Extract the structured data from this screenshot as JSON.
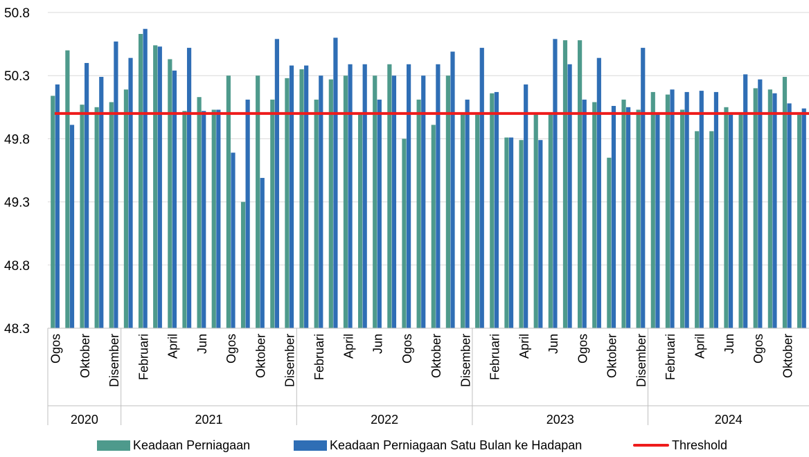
{
  "chart_data": {
    "type": "bar",
    "title": "",
    "xlabel": "",
    "ylabel": "",
    "ylim": [
      48.3,
      50.8
    ],
    "yticks": [
      "48.3",
      "48.8",
      "49.3",
      "49.8",
      "50.3",
      "50.8"
    ],
    "grid": "horizontal",
    "legend_position": "bottom",
    "years": [
      {
        "label": "2020",
        "start": 0,
        "count": 5
      },
      {
        "label": "2021",
        "start": 5,
        "count": 12
      },
      {
        "label": "2022",
        "start": 17,
        "count": 12
      },
      {
        "label": "2023",
        "start": 29,
        "count": 12
      },
      {
        "label": "2024",
        "start": 41,
        "count": 11
      }
    ],
    "categories": [
      "Ogos",
      "",
      "Oktober",
      "",
      "Disember",
      "",
      "Februari",
      "",
      "April",
      "",
      "Jun",
      "",
      "Ogos",
      "",
      "Oktober",
      "",
      "Disember",
      "",
      "Februari",
      "",
      "April",
      "",
      "Jun",
      "",
      "Ogos",
      "",
      "Oktober",
      "",
      "Disember",
      "",
      "Februari",
      "",
      "April",
      "",
      "Jun",
      "",
      "Ogos",
      "",
      "Oktober",
      "",
      "Disember",
      "",
      "Februari",
      "",
      "April",
      "",
      "Jun",
      "",
      "Ogos",
      "",
      "Oktober",
      ""
    ],
    "series": [
      {
        "name": "Keadaan Perniagaan",
        "color": "#4e9a8c",
        "values": [
          50.14,
          50.5,
          50.07,
          50.05,
          50.09,
          50.19,
          50.63,
          50.54,
          50.43,
          50.02,
          50.13,
          50.03,
          50.3,
          49.3,
          50.3,
          50.11,
          50.28,
          50.35,
          50.11,
          50.27,
          50.3,
          50.0,
          50.3,
          50.39,
          49.8,
          50.11,
          49.91,
          50.3,
          50.0,
          49.99,
          50.16,
          49.81,
          49.79,
          50.0,
          50.01,
          50.58,
          50.58,
          50.09,
          49.65,
          50.11,
          50.03,
          50.17,
          50.15,
          50.03,
          49.86,
          49.86,
          50.05,
          50.01,
          50.2,
          50.19,
          50.29,
          49.99
        ]
      },
      {
        "name": "Keadaan Perniagaan Satu Bulan ke Hadapan",
        "color": "#2f6eb5",
        "values": [
          50.23,
          49.91,
          50.4,
          50.29,
          50.57,
          50.44,
          50.67,
          50.53,
          50.34,
          50.52,
          50.02,
          50.03,
          49.69,
          50.11,
          49.49,
          50.59,
          50.38,
          50.38,
          50.3,
          50.6,
          50.39,
          50.39,
          50.11,
          50.3,
          50.39,
          50.3,
          50.39,
          50.49,
          50.11,
          50.52,
          50.17,
          49.81,
          50.23,
          49.79,
          50.59,
          50.39,
          50.11,
          50.44,
          50.06,
          50.05,
          50.52,
          50.0,
          50.19,
          50.17,
          50.18,
          50.17,
          49.99,
          50.31,
          50.27,
          50.16,
          50.08,
          50.04
        ]
      },
      {
        "name": "Threshold",
        "type": "line",
        "color": "#ee1c1c",
        "value": 50.0
      }
    ]
  }
}
